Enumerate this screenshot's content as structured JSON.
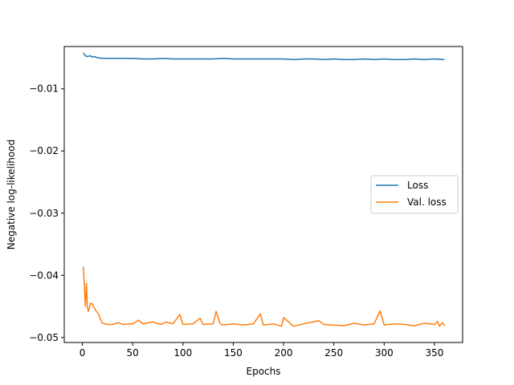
{
  "chart_data": {
    "type": "line",
    "xlabel": "Epochs",
    "ylabel": "Negative log-likelihood",
    "xlim": [
      -18,
      378
    ],
    "ylim": [
      -0.0508,
      -0.0032
    ],
    "xticks": [
      0,
      50,
      100,
      150,
      200,
      250,
      300,
      350
    ],
    "xtick_labels": [
      "0",
      "50",
      "100",
      "150",
      "200",
      "250",
      "300",
      "350"
    ],
    "yticks": [
      -0.01,
      -0.02,
      -0.03,
      -0.04,
      -0.05
    ],
    "ytick_labels": [
      "−0.01",
      "−0.02",
      "−0.03",
      "−0.04",
      "−0.05"
    ],
    "grid": false,
    "legend_position": "center-right",
    "series": [
      {
        "name": "Loss",
        "color": "#1f77b4",
        "x": [
          1,
          3,
          5,
          8,
          10,
          12,
          15,
          20,
          30,
          40,
          50,
          60,
          70,
          80,
          90,
          100,
          110,
          120,
          130,
          140,
          150,
          160,
          170,
          180,
          190,
          200,
          210,
          220,
          230,
          240,
          250,
          260,
          270,
          280,
          290,
          300,
          310,
          320,
          330,
          340,
          350,
          360
        ],
        "y": [
          -0.0042,
          -0.0047,
          -0.0048,
          -0.0047,
          -0.0049,
          -0.0048,
          -0.005,
          -0.0051,
          -0.0051,
          -0.0051,
          -0.0051,
          -0.0052,
          -0.0052,
          -0.0051,
          -0.0052,
          -0.0052,
          -0.0052,
          -0.0052,
          -0.0052,
          -0.0051,
          -0.0052,
          -0.0052,
          -0.0052,
          -0.0052,
          -0.0052,
          -0.0052,
          -0.0053,
          -0.0052,
          -0.0052,
          -0.0053,
          -0.0052,
          -0.0053,
          -0.0053,
          -0.0052,
          -0.0053,
          -0.0052,
          -0.0053,
          -0.0053,
          -0.0052,
          -0.0053,
          -0.0052,
          -0.0053
        ]
      },
      {
        "name": "Val. loss",
        "color": "#ff7f0e",
        "x": [
          1,
          3,
          4,
          5,
          6,
          8,
          10,
          13,
          16,
          18,
          20,
          25,
          30,
          36,
          40,
          50,
          56,
          60,
          70,
          78,
          83,
          90,
          97,
          100,
          110,
          117,
          120,
          130,
          133,
          137,
          140,
          150,
          160,
          170,
          177,
          180,
          190,
          198,
          200,
          210,
          220,
          235,
          240,
          250,
          260,
          270,
          280,
          290,
          296,
          300,
          310,
          320,
          330,
          340,
          350,
          353,
          355,
          358,
          360
        ],
        "y": [
          -0.0386,
          -0.045,
          -0.0413,
          -0.0452,
          -0.0458,
          -0.0445,
          -0.0446,
          -0.0456,
          -0.0462,
          -0.0471,
          -0.0477,
          -0.0479,
          -0.0479,
          -0.0476,
          -0.0479,
          -0.0478,
          -0.0472,
          -0.0478,
          -0.0475,
          -0.0479,
          -0.0475,
          -0.0478,
          -0.0463,
          -0.0479,
          -0.0478,
          -0.0469,
          -0.0479,
          -0.0478,
          -0.0458,
          -0.0478,
          -0.048,
          -0.0478,
          -0.048,
          -0.0478,
          -0.0462,
          -0.048,
          -0.0478,
          -0.0482,
          -0.0468,
          -0.0482,
          -0.0478,
          -0.0473,
          -0.0479,
          -0.048,
          -0.0481,
          -0.0477,
          -0.048,
          -0.0478,
          -0.0457,
          -0.048,
          -0.0478,
          -0.0479,
          -0.0481,
          -0.0477,
          -0.0479,
          -0.0474,
          -0.0482,
          -0.0476,
          -0.0481
        ]
      }
    ]
  }
}
